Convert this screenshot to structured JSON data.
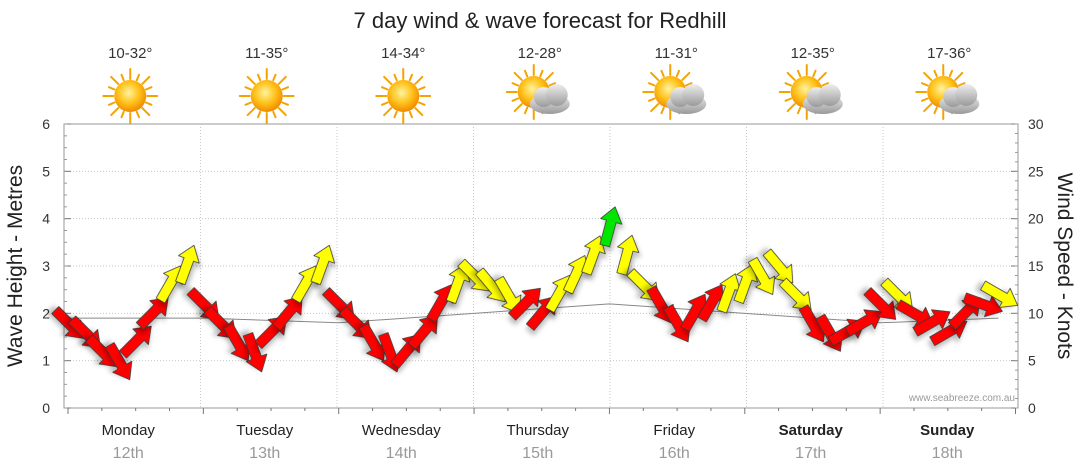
{
  "chart_data": {
    "type": "line",
    "title": "7 day wind & wave forecast for Redhill",
    "ylabel": "Wave Height - Metres",
    "y2label": "Wind Speed - Knots",
    "ylim": [
      0,
      6
    ],
    "y2lim": [
      0,
      30
    ],
    "yticks": [
      "0",
      "1",
      "2",
      "3",
      "4",
      "5",
      "6"
    ],
    "y2ticks": [
      "0",
      "5",
      "10",
      "15",
      "20",
      "25",
      "30"
    ],
    "credit": "www.seabreeze.com.au",
    "weather": [
      {
        "temp": "10-32°",
        "icon": "sunny-icon"
      },
      {
        "temp": "11-35°",
        "icon": "sunny-icon"
      },
      {
        "temp": "14-34°",
        "icon": "sunny-icon"
      },
      {
        "temp": "12-28°",
        "icon": "partly-cloudy-icon"
      },
      {
        "temp": "11-31°",
        "icon": "partly-cloudy-icon"
      },
      {
        "temp": "12-35°",
        "icon": "partly-cloudy-icon"
      },
      {
        "temp": "17-36°",
        "icon": "partly-cloudy-icon"
      }
    ],
    "days": [
      {
        "name": "Monday",
        "date": "12th",
        "bold": false
      },
      {
        "name": "Tuesday",
        "date": "13th",
        "bold": false
      },
      {
        "name": "Wednesday",
        "date": "14th",
        "bold": false
      },
      {
        "name": "Thursday",
        "date": "15th",
        "bold": false
      },
      {
        "name": "Friday",
        "date": "16th",
        "bold": false
      },
      {
        "name": "Saturday",
        "date": "17th",
        "bold": true
      },
      {
        "name": "Sunday",
        "date": "18th",
        "bold": true
      }
    ],
    "colors": {
      "light": "#ff0000",
      "moderate": "#ffff00",
      "strong": "#00e600"
    },
    "series": [
      {
        "name": "Wind Speed",
        "unit": "knots",
        "x_hours": [
          0,
          3,
          6,
          9,
          12,
          15,
          18,
          21,
          24,
          27,
          30,
          33,
          36,
          39,
          42,
          45,
          48,
          51,
          54,
          57,
          60,
          63,
          66,
          69,
          72,
          75,
          78,
          81,
          84,
          87,
          90,
          93,
          96,
          99,
          102,
          105,
          108,
          111,
          114,
          117,
          120,
          123,
          126,
          129,
          132,
          135,
          138,
          141,
          144,
          147,
          150,
          153,
          156,
          159,
          162,
          165
        ],
        "values": [
          9,
          8,
          6,
          5,
          7,
          10,
          13,
          15,
          11,
          9,
          7,
          6,
          8,
          10,
          13,
          15,
          11,
          9,
          7,
          6,
          6,
          8,
          11,
          13,
          14,
          13,
          12,
          11,
          10,
          12,
          14,
          16,
          19,
          16,
          13,
          11,
          9,
          10,
          11,
          12,
          13,
          14,
          15,
          12,
          9,
          8,
          8,
          9,
          11,
          12,
          10,
          9,
          8,
          10,
          11,
          12
        ],
        "dir_deg": [
          135,
          135,
          135,
          150,
          45,
          45,
          30,
          20,
          135,
          135,
          150,
          160,
          45,
          40,
          30,
          20,
          135,
          135,
          150,
          160,
          40,
          40,
          30,
          20,
          135,
          140,
          150,
          45,
          40,
          30,
          25,
          20,
          15,
          15,
          135,
          150,
          150,
          30,
          30,
          20,
          20,
          150,
          140,
          135,
          150,
          150,
          60,
          60,
          135,
          135,
          120,
          60,
          60,
          45,
          110,
          120
        ]
      },
      {
        "name": "Wave Height",
        "unit": "m",
        "x_hours": [
          0,
          24,
          48,
          72,
          96,
          120,
          144,
          165
        ],
        "values": [
          1.9,
          1.9,
          1.8,
          2.0,
          2.2,
          2.0,
          1.8,
          1.9
        ]
      }
    ]
  }
}
